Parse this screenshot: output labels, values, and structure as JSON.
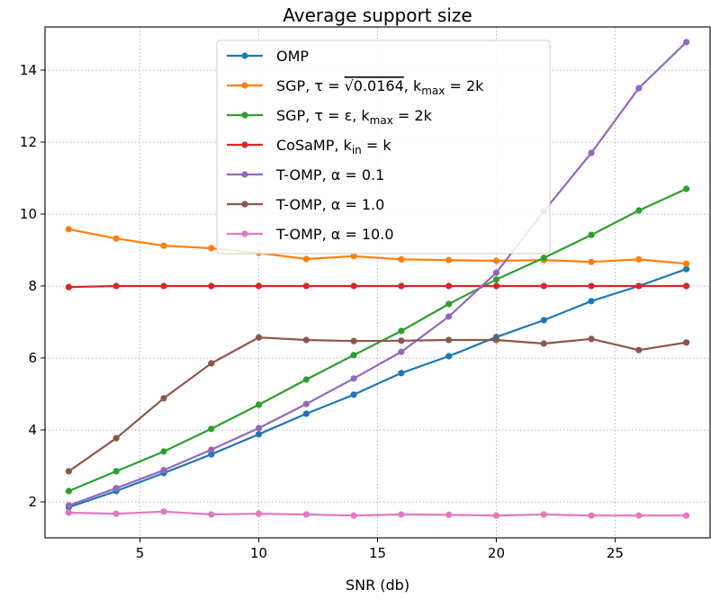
{
  "chart_data": {
    "type": "line",
    "title": "Average support size",
    "xlabel": "SNR (db)",
    "ylabel": "",
    "xlim": [
      1,
      29
    ],
    "ylim": [
      1.0,
      15.2
    ],
    "xticks": [
      5,
      10,
      15,
      20,
      25
    ],
    "xtick_labels": [
      "5",
      "10",
      "15",
      "20",
      "25"
    ],
    "yticks": [
      2,
      4,
      6,
      8,
      10,
      12,
      14
    ],
    "ytick_labels": [
      "2",
      "4",
      "6",
      "8",
      "10",
      "12",
      "14"
    ],
    "grid": true,
    "grid_style": "dotted",
    "legend_position": "top-center",
    "x": [
      2,
      4,
      6,
      8,
      10,
      12,
      14,
      16,
      18,
      20,
      22,
      24,
      26,
      28
    ],
    "series": [
      {
        "name": "OMP",
        "legend_parts": [
          [
            "OMP",
            ""
          ]
        ],
        "color": "#1f77b4",
        "values": [
          1.85,
          2.3,
          2.8,
          3.32,
          3.88,
          4.45,
          4.98,
          5.58,
          6.05,
          6.58,
          7.05,
          7.58,
          8.0,
          8.47
        ]
      },
      {
        "name": "SGP, τ = √0.0164, k_max = 2k",
        "legend_parts": [
          [
            "SGP, τ = ",
            ""
          ],
          [
            "√0.0164",
            "sqrt"
          ],
          [
            ", k",
            ""
          ],
          [
            "max",
            "sub"
          ],
          [
            " = 2k",
            ""
          ]
        ],
        "color": "#ff7f0e",
        "values": [
          9.58,
          9.32,
          9.12,
          9.05,
          8.92,
          8.75,
          8.83,
          8.74,
          8.72,
          8.7,
          8.72,
          8.67,
          8.74,
          8.62
        ]
      },
      {
        "name": "SGP, τ = ε, k_max = 2k",
        "legend_parts": [
          [
            "SGP, τ = ε, k",
            ""
          ],
          [
            "max",
            "sub"
          ],
          [
            " = 2k",
            ""
          ]
        ],
        "color": "#2ca02c",
        "values": [
          2.3,
          2.85,
          3.4,
          4.03,
          4.7,
          5.4,
          6.08,
          6.75,
          7.5,
          8.18,
          8.78,
          9.42,
          10.1,
          10.7
        ]
      },
      {
        "name": "CoSaMP, k_in = k",
        "legend_parts": [
          [
            "CoSaMP, k",
            ""
          ],
          [
            "in",
            "sub"
          ],
          [
            " = k",
            ""
          ]
        ],
        "color": "#d62728",
        "values": [
          7.97,
          8.0,
          8.0,
          8.0,
          8.0,
          8.0,
          8.0,
          8.0,
          8.0,
          8.0,
          8.0,
          8.0,
          8.0,
          8.0
        ]
      },
      {
        "name": "T-OMP, α = 0.1",
        "legend_parts": [
          [
            "T-OMP, α = 0.1",
            ""
          ]
        ],
        "color": "#9467bd",
        "values": [
          1.9,
          2.38,
          2.88,
          3.45,
          4.05,
          4.72,
          5.43,
          6.17,
          7.15,
          8.37,
          10.08,
          11.7,
          13.5,
          14.78
        ]
      },
      {
        "name": "T-OMP, α = 1.0",
        "legend_parts": [
          [
            "T-OMP, α = 1.0",
            ""
          ]
        ],
        "color": "#8c564b",
        "values": [
          2.85,
          3.77,
          4.88,
          5.85,
          6.57,
          6.5,
          6.47,
          6.48,
          6.5,
          6.5,
          6.4,
          6.53,
          6.22,
          6.43
        ]
      },
      {
        "name": "T-OMP, α = 10.0",
        "legend_parts": [
          [
            "T-OMP, α = 10.0",
            ""
          ]
        ],
        "color": "#e377c2",
        "values": [
          1.7,
          1.67,
          1.73,
          1.65,
          1.67,
          1.65,
          1.62,
          1.65,
          1.64,
          1.62,
          1.65,
          1.62,
          1.62,
          1.62
        ]
      }
    ]
  }
}
